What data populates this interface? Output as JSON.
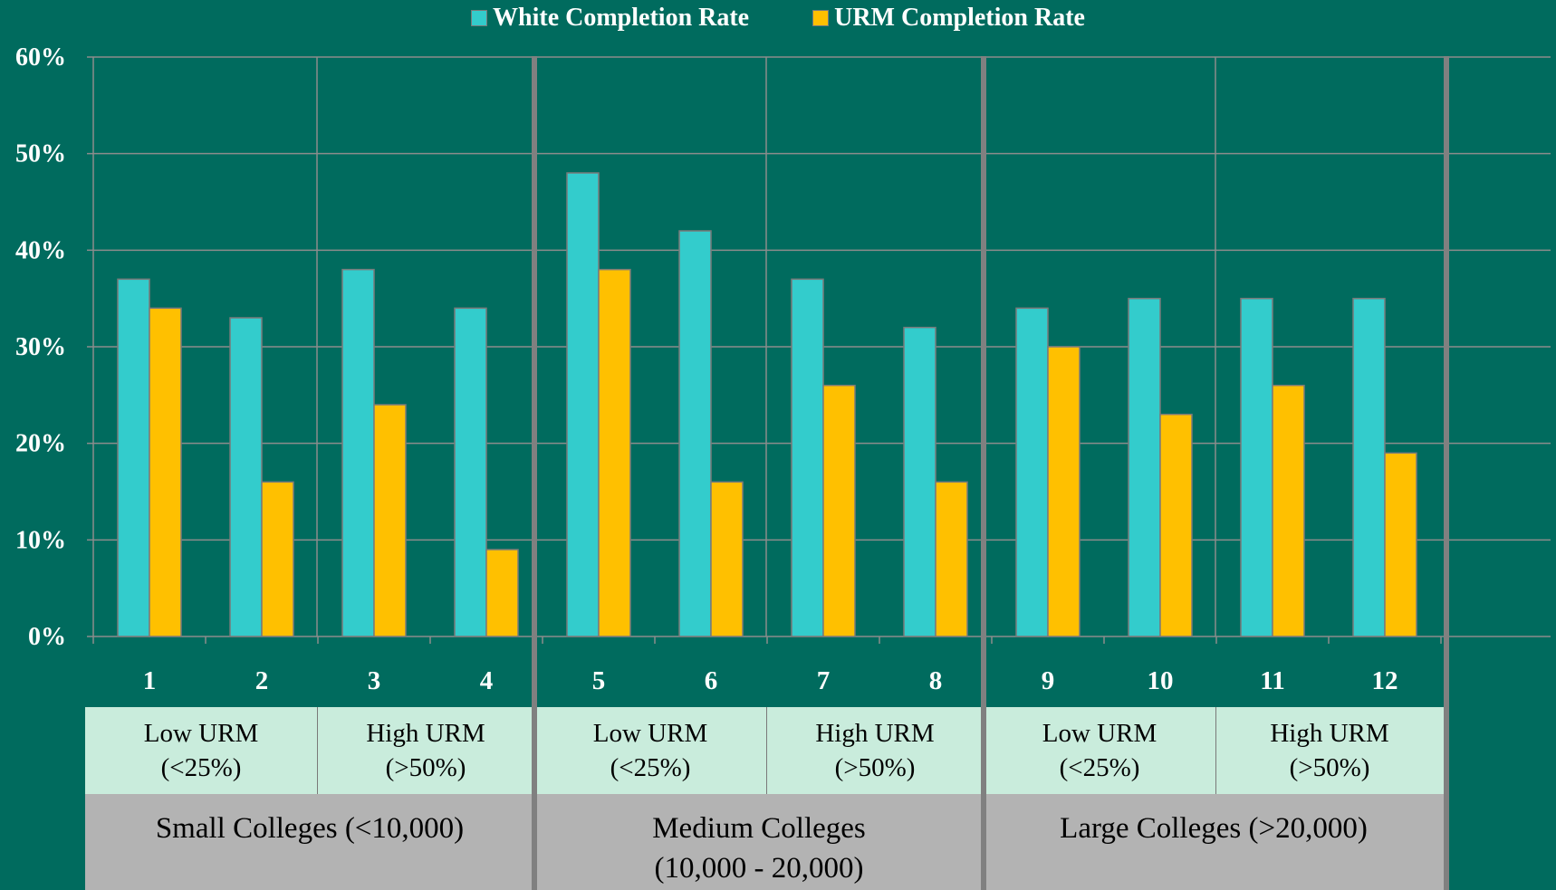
{
  "legend": {
    "white_label": "White Completion Rate",
    "urm_label": "URM Completion Rate"
  },
  "colors": {
    "background": "#006b5e",
    "white_series": "#33cccc",
    "urm_series": "#ffc000",
    "urm_band": "#c9ecdc",
    "size_band": "#b3b3b3",
    "grid": "#8c8c8c"
  },
  "chart_data": {
    "type": "bar",
    "title": "",
    "xlabel": "",
    "ylabel": "",
    "ylim": [
      0,
      0.6
    ],
    "yticks": [
      "0%",
      "10%",
      "20%",
      "30%",
      "40%",
      "50%",
      "60%"
    ],
    "categories": [
      "1",
      "2",
      "3",
      "4",
      "5",
      "6",
      "7",
      "8",
      "9",
      "10",
      "11",
      "12"
    ],
    "series": [
      {
        "name": "White Completion Rate",
        "values": [
          0.37,
          0.33,
          0.38,
          0.34,
          0.48,
          0.42,
          0.37,
          0.32,
          0.34,
          0.35,
          0.35,
          0.35
        ]
      },
      {
        "name": "URM Completion Rate",
        "values": [
          0.34,
          0.16,
          0.24,
          0.09,
          0.38,
          0.16,
          0.26,
          0.16,
          0.3,
          0.23,
          0.26,
          0.19
        ]
      }
    ],
    "legend_position": "top-center",
    "grid": true
  },
  "groups": {
    "urm": [
      {
        "label": "Low URM\n(<25%)"
      },
      {
        "label": "High URM\n(>50%)"
      },
      {
        "label": "Low URM\n(<25%)"
      },
      {
        "label": "High URM\n(>50%)"
      },
      {
        "label": "Low URM\n(<25%)"
      },
      {
        "label": "High URM\n(>50%)"
      }
    ],
    "size": [
      {
        "label": "Small Colleges (<10,000)"
      },
      {
        "label": "Medium Colleges\n(10,000  - 20,000)"
      },
      {
        "label": "Large Colleges (>20,000)"
      }
    ]
  }
}
